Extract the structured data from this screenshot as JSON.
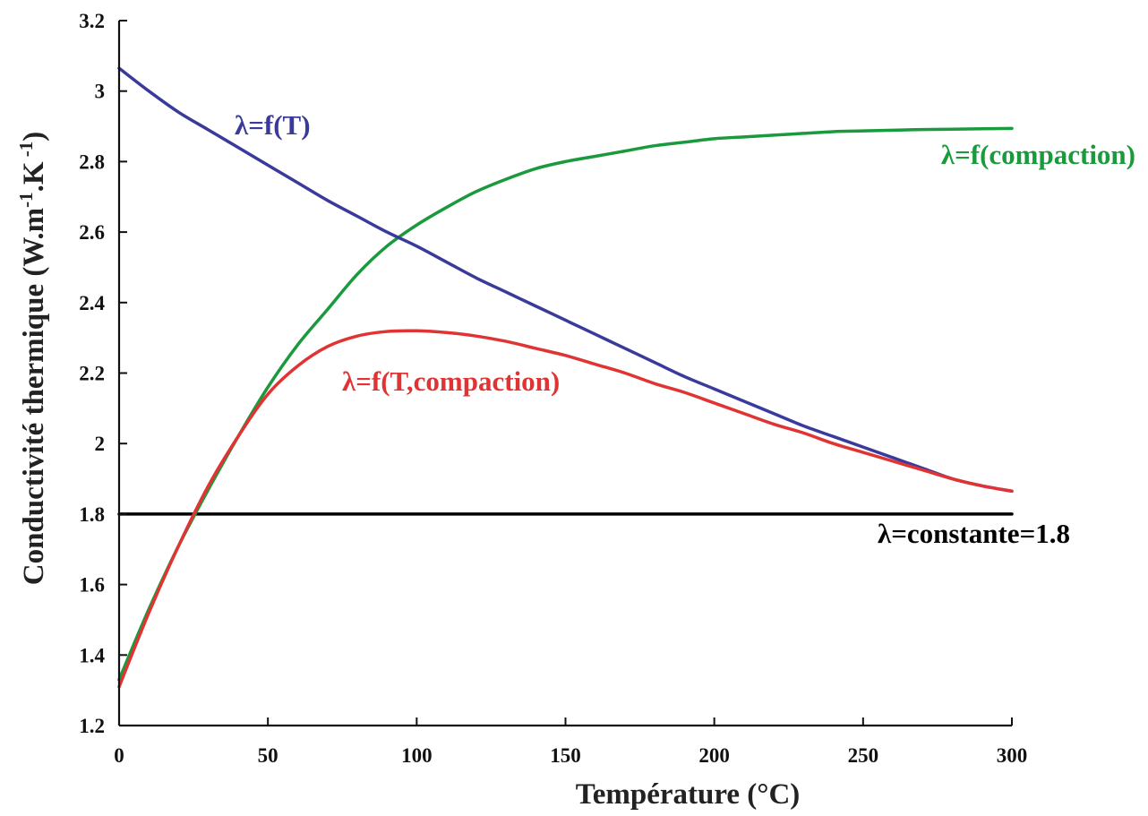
{
  "chart_data": {
    "type": "line",
    "title": "",
    "xlabel": "Température (°C)",
    "ylabel_parts": [
      "Conductivité thermique (W.m",
      "-1",
      ".K",
      " -1",
      ")"
    ],
    "xlim": [
      0,
      300
    ],
    "ylim": [
      1.2,
      3.2
    ],
    "x_ticks": [
      0,
      50,
      100,
      150,
      200,
      250,
      300
    ],
    "y_ticks": [
      1.2,
      1.4,
      1.6,
      1.8,
      2,
      2.2,
      2.4,
      2.6,
      2.8,
      3,
      3.2
    ],
    "x_tick_labels": [
      "0",
      "50",
      "100",
      "150",
      "200",
      "250",
      "300"
    ],
    "y_tick_labels": [
      "1.2",
      "1.4",
      "1.6",
      "1.8",
      "2",
      "2.2",
      "2.4",
      "2.6",
      "2.8",
      "3",
      "3.2"
    ],
    "grid": false,
    "series": [
      {
        "name": "λ=f(T)",
        "color": "#3a3a9c",
        "x": [
          0,
          10,
          20,
          30,
          40,
          50,
          60,
          70,
          80,
          90,
          100,
          110,
          120,
          130,
          140,
          150,
          160,
          170,
          180,
          190,
          200,
          210,
          220,
          230,
          240,
          250,
          260,
          270,
          280,
          290,
          300
        ],
        "y": [
          3.065,
          3.0,
          2.94,
          2.89,
          2.84,
          2.79,
          2.74,
          2.69,
          2.645,
          2.6,
          2.56,
          2.515,
          2.47,
          2.43,
          2.39,
          2.35,
          2.31,
          2.27,
          2.23,
          2.19,
          2.155,
          2.12,
          2.085,
          2.05,
          2.02,
          1.99,
          1.96,
          1.93,
          1.9,
          1.88,
          1.865
        ]
      },
      {
        "name": "λ=f(compaction)",
        "color": "#1a9a3c",
        "x": [
          0,
          10,
          20,
          30,
          40,
          50,
          60,
          70,
          80,
          90,
          100,
          110,
          120,
          130,
          140,
          150,
          160,
          170,
          180,
          190,
          200,
          210,
          220,
          230,
          240,
          250,
          260,
          270,
          280,
          290,
          300
        ],
        "y": [
          1.33,
          1.53,
          1.71,
          1.87,
          2.02,
          2.16,
          2.28,
          2.38,
          2.48,
          2.56,
          2.62,
          2.67,
          2.715,
          2.75,
          2.78,
          2.8,
          2.815,
          2.83,
          2.845,
          2.855,
          2.865,
          2.87,
          2.875,
          2.88,
          2.885,
          2.887,
          2.889,
          2.891,
          2.892,
          2.893,
          2.894
        ]
      },
      {
        "name": "λ=f(T,compaction)",
        "color": "#e03434",
        "x": [
          0,
          10,
          20,
          30,
          40,
          50,
          60,
          70,
          80,
          90,
          100,
          110,
          120,
          130,
          140,
          150,
          160,
          170,
          180,
          190,
          200,
          210,
          220,
          230,
          240,
          250,
          260,
          270,
          280,
          290,
          300
        ],
        "y": [
          1.31,
          1.52,
          1.71,
          1.88,
          2.02,
          2.14,
          2.22,
          2.275,
          2.305,
          2.318,
          2.32,
          2.315,
          2.305,
          2.29,
          2.27,
          2.25,
          2.225,
          2.2,
          2.17,
          2.145,
          2.115,
          2.085,
          2.055,
          2.03,
          2.0,
          1.975,
          1.95,
          1.925,
          1.9,
          1.88,
          1.865
        ]
      },
      {
        "name": "λ=constante=1.8",
        "color": "#000000",
        "x": [
          0,
          300
        ],
        "y": [
          1.8,
          1.8
        ]
      }
    ]
  }
}
